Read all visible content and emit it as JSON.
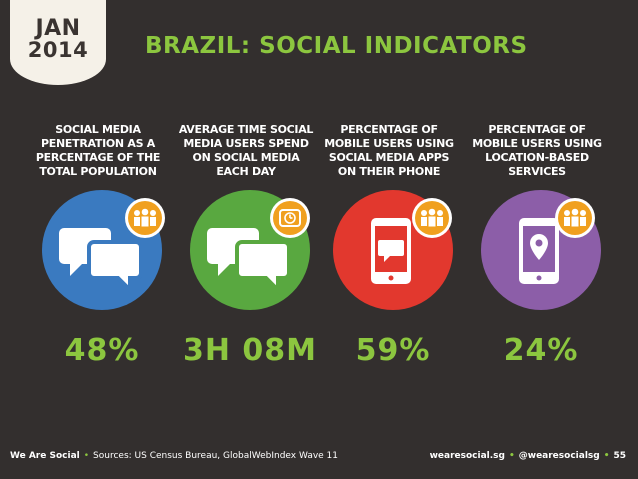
{
  "date": {
    "month": "JAN",
    "year": "2014"
  },
  "title": "BRAZIL: SOCIAL INDICATORS",
  "colors": {
    "accent": "#8cc63f",
    "background": "#332f2e",
    "blue": "#3a7ac0",
    "green": "#59a840",
    "red": "#e2382e",
    "purple": "#8c5ea8",
    "badge_orange": "#f0a01f"
  },
  "columns": [
    {
      "label": "SOCIAL MEDIA PENETRATION AS A PERCENTAGE OF THE TOTAL POPULATION",
      "value": "48%",
      "icon": "speech-bubbles-icon",
      "badge_icon": "people-icon"
    },
    {
      "label": "AVERAGE TIME SOCIAL MEDIA USERS SPEND ON SOCIAL MEDIA EACH DAY",
      "value": "3H 08M",
      "icon": "speech-bubbles-icon",
      "badge_icon": "clock-icon"
    },
    {
      "label": "PERCENTAGE OF MOBILE USERS USING SOCIAL MEDIA APPS ON THEIR PHONE",
      "value": "59%",
      "icon": "mobile-chat-icon",
      "badge_icon": "people-icon"
    },
    {
      "label": "PERCENTAGE OF MOBILE USERS USING LOCATION-BASED SERVICES",
      "value": "24%",
      "icon": "mobile-location-icon",
      "badge_icon": "people-icon"
    }
  ],
  "footer": {
    "brand": "We Are Social",
    "sources": "Sources: US Census Bureau, GlobalWebIndex Wave 11",
    "website": "wearesocial.sg",
    "handle": "@wearesocialsg",
    "page": "55"
  }
}
